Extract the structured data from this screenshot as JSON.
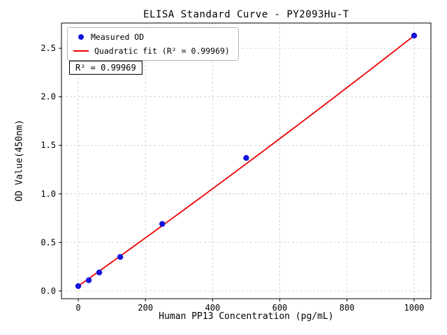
{
  "figure": {
    "annotation_text": "R² = 0.99969"
  },
  "chart_data": {
    "type": "scatter",
    "title": "ELISA Standard Curve - PY2093Hu-T",
    "xlabel": "Human PP13 Concentration (pg/mL)",
    "ylabel": "OD Value(450nm)",
    "r_squared": 0.99969,
    "grid": true,
    "grid_color": "#c8c8c8",
    "legend_position": "upper left",
    "xlim": [
      -50,
      1050
    ],
    "ylim": [
      -0.08,
      2.76
    ],
    "x_ticks": [
      0,
      200,
      400,
      600,
      800,
      1000
    ],
    "x_tick_labels": [
      "0",
      "200",
      "400",
      "600",
      "800",
      "1000"
    ],
    "y_ticks": [
      0.0,
      0.5,
      1.0,
      1.5,
      2.0,
      2.5
    ],
    "y_tick_labels": [
      "0.0",
      "0.5",
      "1.0",
      "1.5",
      "2.0",
      "2.5"
    ],
    "series": [
      {
        "name": "Measured OD",
        "type": "scatter",
        "color": "#1414e0",
        "x": [
          0,
          31.2,
          62.5,
          125,
          250,
          500,
          1000
        ],
        "y": [
          0.05,
          0.11,
          0.19,
          0.35,
          0.69,
          1.37,
          2.63
        ]
      },
      {
        "name": "Quadratic fit (R² = 0.99969)",
        "type": "line",
        "color": "#ee0000",
        "fit": {
          "a": 1.2e-07,
          "b": 0.00246,
          "c": 0.05,
          "x_range": [
            0,
            1000
          ]
        }
      }
    ]
  }
}
